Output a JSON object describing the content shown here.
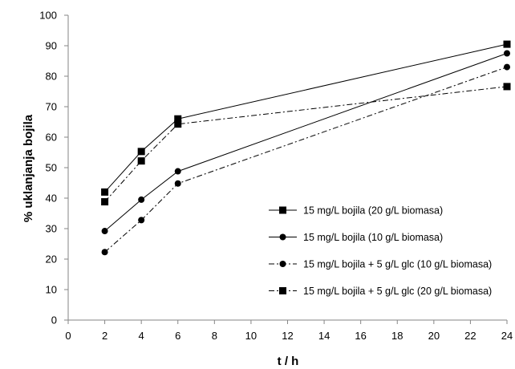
{
  "chart_data": {
    "type": "line",
    "xlabel": "t / h",
    "ylabel": "% uklanjanja bojila",
    "xlim": [
      0,
      24
    ],
    "ylim": [
      0,
      100
    ],
    "x_ticks": [
      0,
      2,
      4,
      6,
      8,
      10,
      12,
      14,
      16,
      18,
      20,
      22,
      24
    ],
    "y_ticks": [
      0,
      10,
      20,
      30,
      40,
      50,
      60,
      70,
      80,
      90,
      100
    ],
    "x": [
      2,
      4,
      6,
      24
    ],
    "grid": false,
    "legend_position": "right",
    "series": [
      {
        "name": "15 mg/L bojila (20 g/L biomasa)",
        "values": [
          42,
          55.3,
          66,
          90.5
        ],
        "marker": "square",
        "line": "solid"
      },
      {
        "name": "15 mg/L bojila (10 g/L biomasa)",
        "values": [
          29.2,
          39.5,
          48.8,
          87.5
        ],
        "marker": "circle",
        "line": "solid"
      },
      {
        "name": "15 mg/L bojila + 5 g/L glc (10 g/L biomasa)",
        "values": [
          22.3,
          32.8,
          44.8,
          83
        ],
        "marker": "circle",
        "line": "dashdot"
      },
      {
        "name": "15 mg/L bojila + 5 g/L glc (20 g/L biomasa)",
        "values": [
          38.8,
          52.2,
          64.3,
          76.6
        ],
        "marker": "square",
        "line": "dashdot"
      }
    ]
  }
}
